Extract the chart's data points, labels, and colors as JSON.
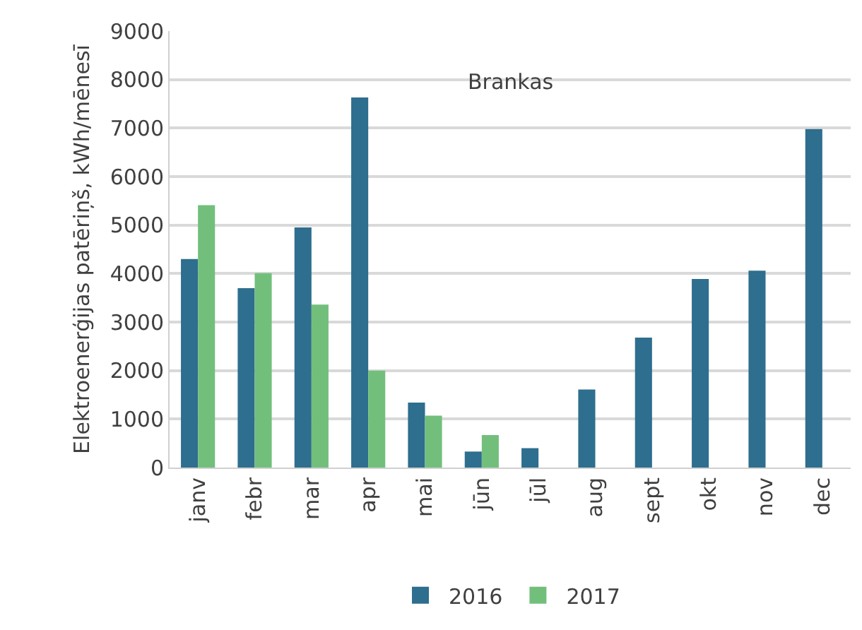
{
  "chart_data": {
    "type": "bar",
    "ylabel": "Elektroenerģijas patēriņš, kWh/mēnesī",
    "annotations": [
      "Brankas"
    ],
    "categories": [
      "janv",
      "febr",
      "mar",
      "apr",
      "mai",
      "jūn",
      "jūl",
      "aug",
      "sept",
      "okt",
      "nov",
      "dec"
    ],
    "series": [
      {
        "name": "2016",
        "color": "#2e6e8e",
        "values": [
          4300,
          3700,
          4950,
          7630,
          1340,
          330,
          400,
          1610,
          2680,
          3890,
          4060,
          6980
        ]
      },
      {
        "name": "2017",
        "color": "#72bf7c",
        "values": [
          5410,
          4010,
          3360,
          2000,
          1070,
          670,
          null,
          null,
          null,
          null,
          null,
          null
        ]
      }
    ],
    "ylim": [
      0,
      9000
    ],
    "yticks": [
      0,
      1000,
      2000,
      3000,
      4000,
      5000,
      6000,
      7000,
      8000,
      9000
    ],
    "grid": "y",
    "legend": "bottom"
  }
}
